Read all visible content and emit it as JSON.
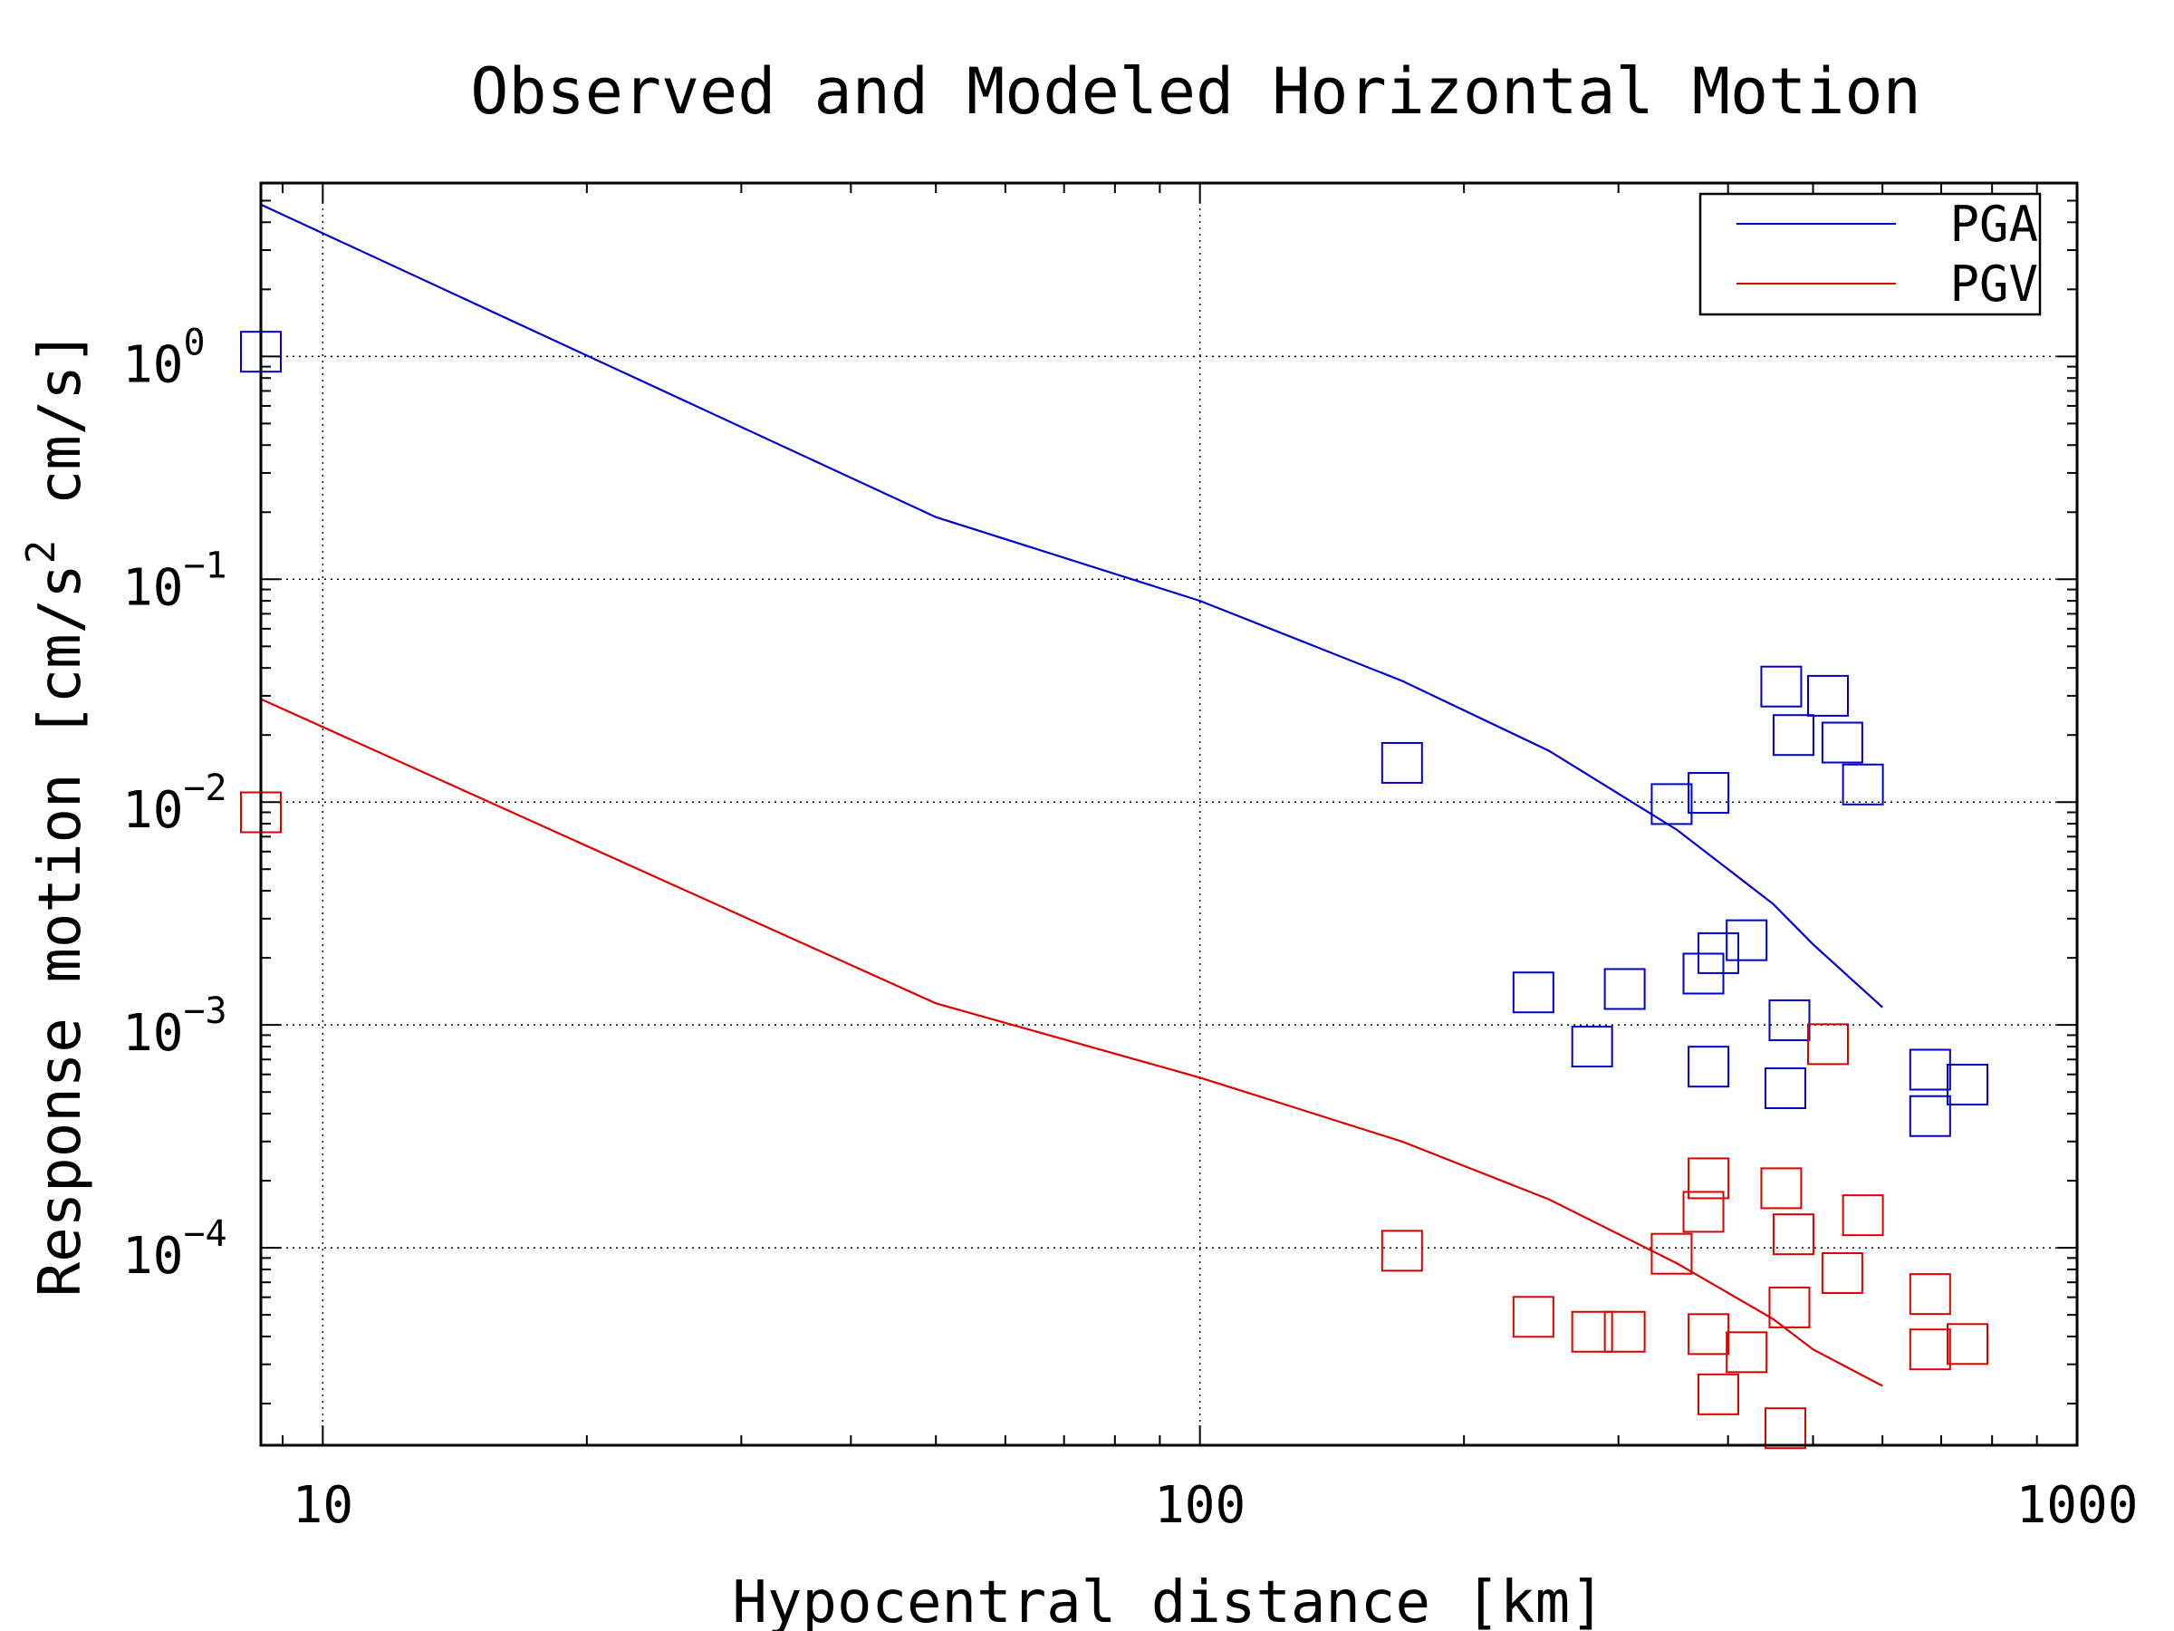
{
  "chart_data": {
    "type": "scatter",
    "title": "Observed and Modeled Horizontal Motion",
    "xlabel": "Hypocentral distance [km]",
    "ylabel_parts": {
      "pre": "Response motion  [cm/s",
      "sup": "2",
      "post": "   cm/s]"
    },
    "x_scale": "log",
    "y_scale": "log",
    "xlim": [
      8.5,
      1000
    ],
    "ylim": [
      1.3e-05,
      6
    ],
    "grid": true,
    "legend_position": "top-right",
    "x_ticks": [
      {
        "value": 10,
        "label": "10"
      },
      {
        "value": 100,
        "label": "100"
      },
      {
        "value": 1000,
        "label": "1000"
      }
    ],
    "y_ticks": [
      {
        "value": 1,
        "base": "10",
        "exp": "0"
      },
      {
        "value": 0.1,
        "base": "10",
        "exp": "−1"
      },
      {
        "value": 0.01,
        "base": "10",
        "exp": "−2"
      },
      {
        "value": 0.001,
        "base": "10",
        "exp": "−3"
      },
      {
        "value": 0.0001,
        "base": "10",
        "exp": "−4"
      }
    ],
    "series": [
      {
        "name": "PGA",
        "color": "#0000cc",
        "model_line": [
          [
            8.5,
            4.8
          ],
          [
            50,
            0.19
          ],
          [
            100,
            0.08
          ],
          [
            170,
            0.035
          ],
          [
            250,
            0.017
          ],
          [
            350,
            0.0075
          ],
          [
            450,
            0.0035
          ],
          [
            500,
            0.0023
          ],
          [
            600,
            0.0012
          ]
        ],
        "observed": [
          [
            8.5,
            1.05
          ],
          [
            170,
            0.015
          ],
          [
            240,
            0.0014
          ],
          [
            280,
            0.0008
          ],
          [
            305,
            0.00145
          ],
          [
            345,
            0.0098
          ],
          [
            380,
            0.011
          ],
          [
            375,
            0.0017
          ],
          [
            390,
            0.0021
          ],
          [
            420,
            0.0024
          ],
          [
            380,
            0.00065
          ],
          [
            460,
            0.033
          ],
          [
            465,
            0.00052
          ],
          [
            470,
            0.00105
          ],
          [
            475,
            0.02
          ],
          [
            520,
            0.03
          ],
          [
            540,
            0.0185
          ],
          [
            570,
            0.012
          ],
          [
            680,
            0.00063
          ],
          [
            680,
            0.00039
          ],
          [
            750,
            0.00054
          ]
        ]
      },
      {
        "name": "PGV",
        "color": "#dd0000",
        "model_line": [
          [
            8.5,
            0.029
          ],
          [
            50,
            0.00125
          ],
          [
            100,
            0.00058
          ],
          [
            170,
            0.0003
          ],
          [
            250,
            0.000165
          ],
          [
            350,
            8.5e-05
          ],
          [
            450,
            4.8e-05
          ],
          [
            500,
            3.5e-05
          ],
          [
            600,
            2.4e-05
          ]
        ],
        "observed": [
          [
            8.5,
            0.009
          ],
          [
            170,
            9.7e-05
          ],
          [
            240,
            4.9e-05
          ],
          [
            280,
            4.2e-05
          ],
          [
            305,
            4.2e-05
          ],
          [
            345,
            9.4e-05
          ],
          [
            380,
            0.000205
          ],
          [
            375,
            0.000145
          ],
          [
            380,
            4.1e-05
          ],
          [
            390,
            2.2e-05
          ],
          [
            420,
            3.4e-05
          ],
          [
            460,
            0.000185
          ],
          [
            465,
            1.55e-05
          ],
          [
            470,
            5.4e-05
          ],
          [
            475,
            0.000115
          ],
          [
            520,
            0.00082
          ],
          [
            540,
            7.7e-05
          ],
          [
            570,
            0.00014
          ],
          [
            680,
            6.2e-05
          ],
          [
            680,
            3.5e-05
          ],
          [
            750,
            3.7e-05
          ]
        ]
      }
    ]
  }
}
